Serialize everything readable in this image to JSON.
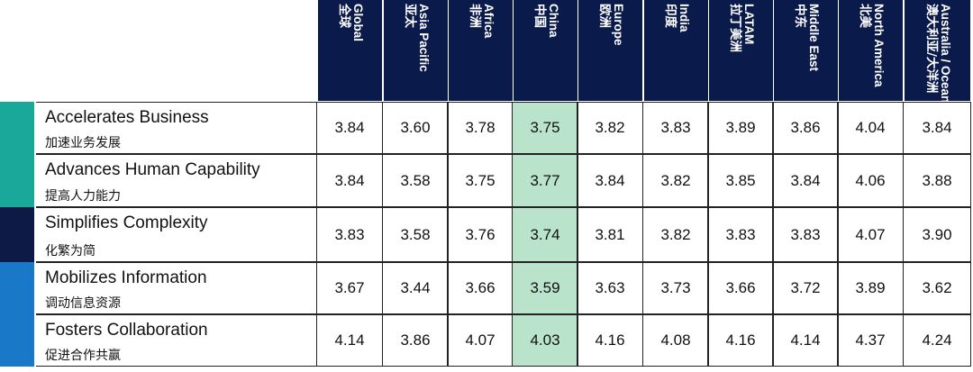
{
  "chart_data": {
    "type": "table",
    "columns": [
      {
        "en": "Global",
        "zh": "全球"
      },
      {
        "en": "Asia Pacific",
        "zh": "亚太"
      },
      {
        "en": "Africa",
        "zh": "非洲"
      },
      {
        "en": "China",
        "zh": "中国"
      },
      {
        "en": "Europe",
        "zh": "欧洲"
      },
      {
        "en": "India",
        "zh": "印度"
      },
      {
        "en": "LATAM",
        "zh": "拉丁美洲"
      },
      {
        "en": "Middle East",
        "zh": "中东"
      },
      {
        "en": "North America",
        "zh": "北美"
      },
      {
        "en": "Australia / Oceania",
        "zh": "澳大利亚/大洋洲"
      }
    ],
    "highlight_column": "China",
    "rows": [
      {
        "en": "Accelerates Business",
        "zh": "加速业务发展",
        "color": "#19a89a",
        "values": [
          "3.84",
          "3.60",
          "3.78",
          "3.75",
          "3.82",
          "3.83",
          "3.89",
          "3.86",
          "4.04",
          "3.84"
        ]
      },
      {
        "en": "Advances Human Capability",
        "zh": "提高人力能力",
        "color": "#19a89a",
        "values": [
          "3.84",
          "3.58",
          "3.75",
          "3.77",
          "3.84",
          "3.82",
          "3.85",
          "3.84",
          "4.06",
          "3.88"
        ]
      },
      {
        "en": "Simplifies Complexity",
        "zh": "化繁为简",
        "color": "#0d1a45",
        "values": [
          "3.83",
          "3.58",
          "3.76",
          "3.74",
          "3.81",
          "3.82",
          "3.83",
          "3.83",
          "4.07",
          "3.90"
        ]
      },
      {
        "en": "Mobilizes Information",
        "zh": "调动信息资源",
        "color": "#1a78c8",
        "values": [
          "3.67",
          "3.44",
          "3.66",
          "3.59",
          "3.63",
          "3.73",
          "3.66",
          "3.72",
          "3.89",
          "3.62"
        ]
      },
      {
        "en": "Fosters Collaboration",
        "zh": "促进合作共赢",
        "color": "#1a78c8",
        "values": [
          "4.14",
          "3.86",
          "4.07",
          "4.03",
          "4.16",
          "4.08",
          "4.16",
          "4.14",
          "4.37",
          "4.24"
        ]
      }
    ]
  },
  "colors": {
    "header_bg": "#0a1a4a",
    "china_highlight": "#b9e3cb"
  }
}
